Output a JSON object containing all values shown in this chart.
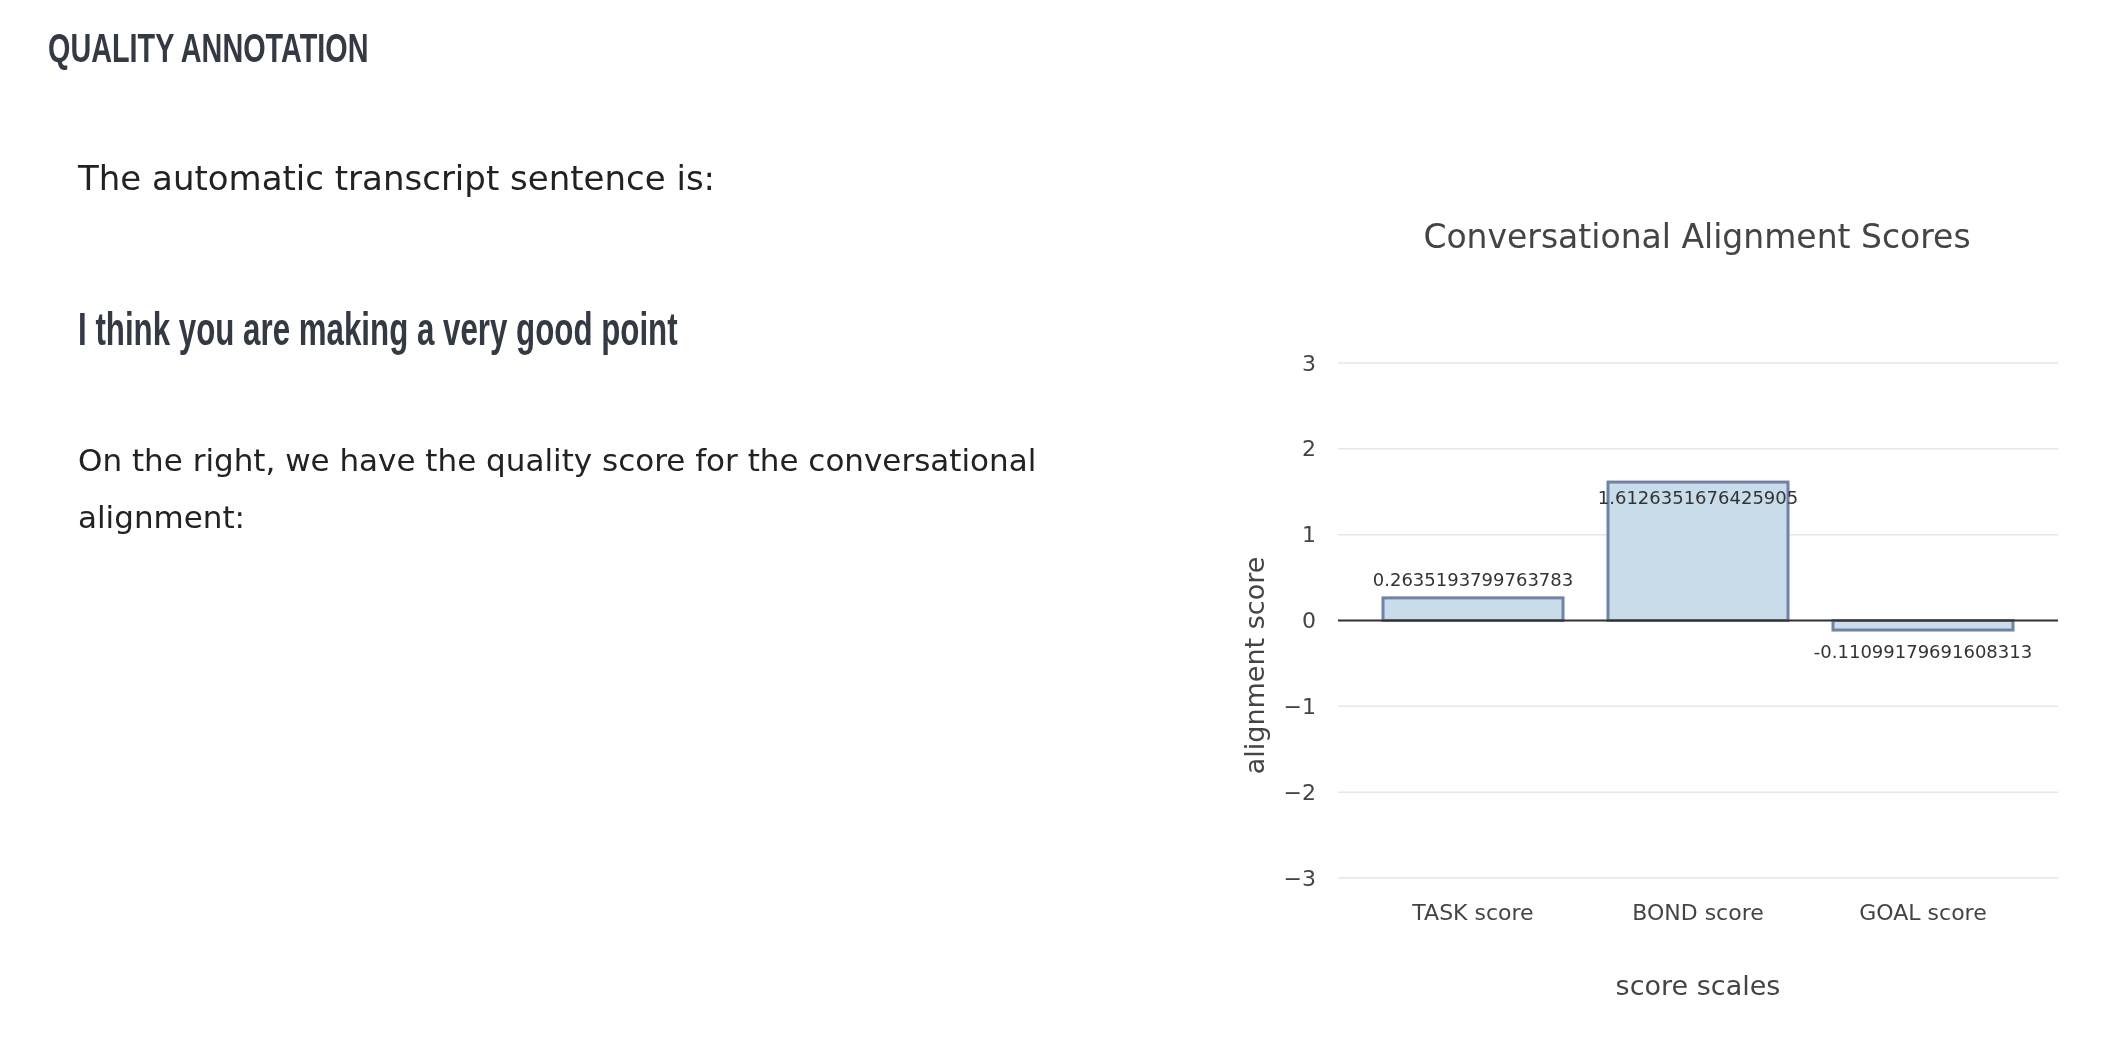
{
  "chart_data": {
    "type": "bar",
    "title": "Conversational Alignment Scores",
    "xlabel": "score scales",
    "ylabel": "alignment score",
    "categories": [
      "TASK score",
      "BOND score",
      "GOAL score"
    ],
    "values": [
      0.2635193799763783,
      1.6126351676425905,
      -0.11099179691608313
    ],
    "color": "#c9dcea",
    "ylim": [
      -3,
      3
    ],
    "yticks": [
      {
        "value": -3,
        "label": "−3"
      },
      {
        "value": -2,
        "label": "−2"
      },
      {
        "value": -1,
        "label": "−1"
      },
      0,
      1,
      2,
      3
    ],
    "grid": "y",
    "data_labels": true,
    "annotations": [
      "QUALITY ANNOTATION",
      "The automatic transcript sentence is:",
      "I think you are making a very good point",
      "On the right, we have the quality score for the conversational alignment:"
    ]
  }
}
